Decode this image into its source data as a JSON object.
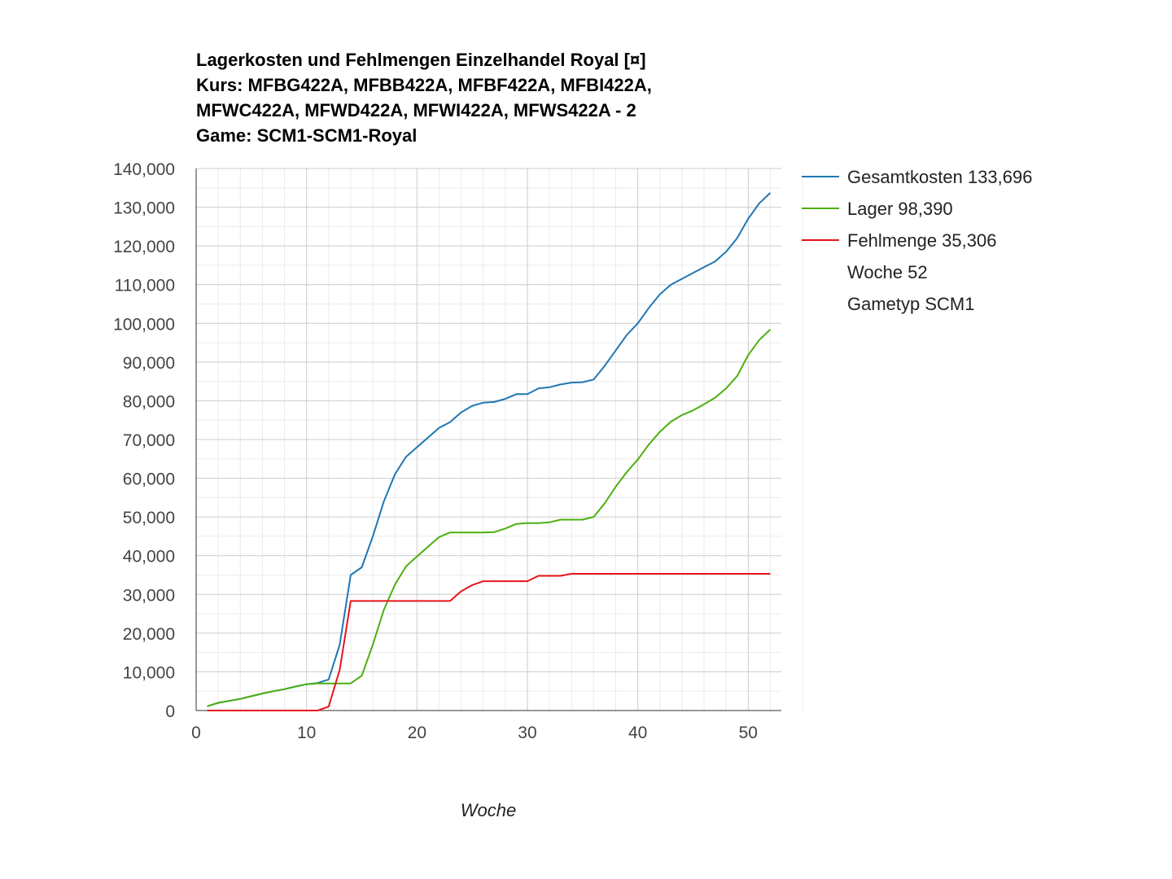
{
  "chart_data": {
    "type": "line",
    "title_lines": [
      "Lagerkosten und Fehlmengen Einzelhandel Royal [¤]",
      "Kurs: MFBG422A, MFBB422A, MFBF422A, MFBI422A,",
      "MFWC422A, MFWD422A, MFWI422A, MFWS422A - 2",
      "Game: SCM1-SCM1-Royal"
    ],
    "xlabel": "Woche",
    "ylabel": "",
    "xlim": [
      0,
      53
    ],
    "ylim": [
      0,
      140000
    ],
    "x_ticks": [
      0,
      10,
      20,
      30,
      40,
      50
    ],
    "y_ticks": [
      0,
      10000,
      20000,
      30000,
      40000,
      50000,
      60000,
      70000,
      80000,
      90000,
      100000,
      110000,
      120000,
      130000,
      140000
    ],
    "x_tick_labels": [
      "0",
      "10",
      "20",
      "30",
      "40",
      "50"
    ],
    "y_tick_labels": [
      "0",
      "10,000",
      "20,000",
      "30,000",
      "40,000",
      "50,000",
      "60,000",
      "70,000",
      "80,000",
      "90,000",
      "100,000",
      "110,000",
      "120,000",
      "130,000",
      "140,000"
    ],
    "grid": true,
    "minor_grid": true,
    "legend_position": "right",
    "x": [
      1,
      2,
      3,
      4,
      5,
      6,
      7,
      8,
      9,
      10,
      11,
      12,
      13,
      14,
      15,
      16,
      17,
      18,
      19,
      20,
      21,
      22,
      23,
      24,
      25,
      26,
      27,
      28,
      29,
      30,
      31,
      32,
      33,
      34,
      35,
      36,
      37,
      38,
      39,
      40,
      41,
      42,
      43,
      44,
      45,
      46,
      47,
      48,
      49,
      50,
      51,
      52
    ],
    "series": [
      {
        "name": "Gesamtkosten",
        "legend_label": "Gesamtkosten 133,696",
        "color": "#1f77b4",
        "values": [
          1100,
          2000,
          2500,
          3000,
          3700,
          4400,
          5000,
          5500,
          6200,
          6800,
          7100,
          8000,
          17000,
          35000,
          37000,
          45000,
          54000,
          61000,
          65500,
          68000,
          70500,
          73000,
          74500,
          77000,
          78700,
          79500,
          79700,
          80500,
          81700,
          81700,
          83200,
          83500,
          84200,
          84700,
          84800,
          85500,
          89000,
          93000,
          97000,
          100000,
          104000,
          107500,
          110000,
          111500,
          113000,
          114500,
          116000,
          118500,
          122000,
          127000,
          131000,
          133696
        ]
      },
      {
        "name": "Lager",
        "legend_label": "Lager 98,390",
        "color": "#4caf10",
        "values": [
          1100,
          2000,
          2500,
          3000,
          3700,
          4400,
          5000,
          5500,
          6200,
          6800,
          7000,
          7000,
          7000,
          7000,
          9000,
          17000,
          26000,
          32500,
          37200,
          39800,
          42300,
          44800,
          46000,
          46000,
          46000,
          46000,
          46100,
          47000,
          48200,
          48400,
          48400,
          48600,
          49300,
          49300,
          49300,
          50000,
          53500,
          57800,
          61600,
          64800,
          68700,
          72000,
          74600,
          76300,
          77500,
          79100,
          80800,
          83200,
          86400,
          91800,
          95700,
          98390
        ]
      },
      {
        "name": "Fehlmenge",
        "legend_label": "Fehlmenge 35,306",
        "color": "#e8141c",
        "values": [
          0,
          0,
          0,
          0,
          0,
          0,
          0,
          0,
          0,
          0,
          0,
          1000,
          10500,
          28300,
          28300,
          28300,
          28300,
          28300,
          28300,
          28300,
          28300,
          28300,
          28300,
          30800,
          32400,
          33400,
          33400,
          33400,
          33400,
          33400,
          34800,
          34800,
          34800,
          35306,
          35306,
          35306,
          35306,
          35306,
          35306,
          35306,
          35306,
          35306,
          35306,
          35306,
          35306,
          35306,
          35306,
          35306,
          35306,
          35306,
          35306,
          35306
        ]
      }
    ],
    "legend_extra": [
      "Woche 52",
      "Gametyp SCM1"
    ],
    "colors": {
      "grid_major": "#cccccc",
      "grid_minor": "#ebebeb",
      "axis": "#333333",
      "tick_text": "#444444"
    }
  }
}
